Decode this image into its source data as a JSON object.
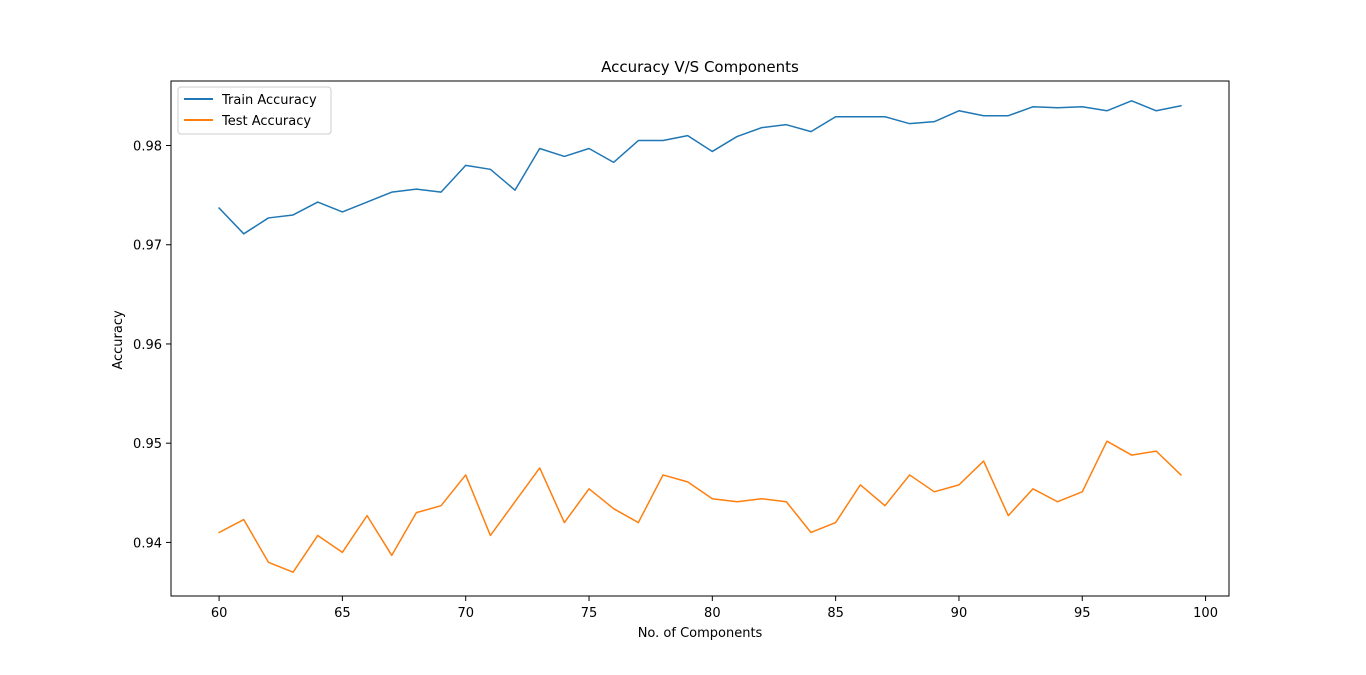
{
  "chart_data": {
    "type": "line",
    "title": "Accuracy V/S Components",
    "xlabel": "No. of Components",
    "ylabel": "Accuracy",
    "xlim": [
      58.05,
      100.95
    ],
    "ylim": [
      0.9346,
      0.9865
    ],
    "xticks": [
      60,
      65,
      70,
      75,
      80,
      85,
      90,
      95,
      100
    ],
    "xtick_labels": [
      "60",
      "65",
      "70",
      "75",
      "80",
      "85",
      "90",
      "95",
      "100"
    ],
    "yticks": [
      0.94,
      0.95,
      0.96,
      0.97,
      0.98
    ],
    "ytick_labels": [
      "0.94",
      "0.95",
      "0.96",
      "0.97",
      "0.98"
    ],
    "grid": false,
    "legend_position": "top-left",
    "x": [
      60,
      61,
      62,
      63,
      64,
      65,
      66,
      67,
      68,
      69,
      70,
      71,
      72,
      73,
      74,
      75,
      76,
      77,
      78,
      79,
      80,
      81,
      82,
      83,
      84,
      85,
      86,
      87,
      88,
      89,
      90,
      91,
      92,
      93,
      94,
      95,
      96,
      97,
      98,
      99
    ],
    "series": [
      {
        "name": "Train Accuracy",
        "color": "#1f77b4",
        "values": [
          0.9737,
          0.9711,
          0.9727,
          0.973,
          0.9743,
          0.9733,
          0.9743,
          0.9753,
          0.9756,
          0.9753,
          0.978,
          0.9776,
          0.9755,
          0.9797,
          0.9789,
          0.9797,
          0.9783,
          0.9805,
          0.9805,
          0.981,
          0.9794,
          0.9809,
          0.9818,
          0.9821,
          0.9814,
          0.9829,
          0.9829,
          0.9829,
          0.9822,
          0.9824,
          0.9835,
          0.983,
          0.983,
          0.9839,
          0.9838,
          0.9839,
          0.9835,
          0.9845,
          0.9835,
          0.984
        ]
      },
      {
        "name": "Test Accuracy",
        "color": "#ff7f0e",
        "values": [
          0.941,
          0.9423,
          0.938,
          0.937,
          0.9407,
          0.939,
          0.9427,
          0.9387,
          0.943,
          0.9437,
          0.9468,
          0.9407,
          0.9441,
          0.9475,
          0.942,
          0.9454,
          0.9434,
          0.942,
          0.9468,
          0.9461,
          0.9444,
          0.9441,
          0.9444,
          0.9441,
          0.941,
          0.942,
          0.9458,
          0.9437,
          0.9468,
          0.9451,
          0.9458,
          0.9482,
          0.9427,
          0.9454,
          0.9441,
          0.9451,
          0.9502,
          0.9488,
          0.9492,
          0.9468
        ]
      }
    ]
  }
}
